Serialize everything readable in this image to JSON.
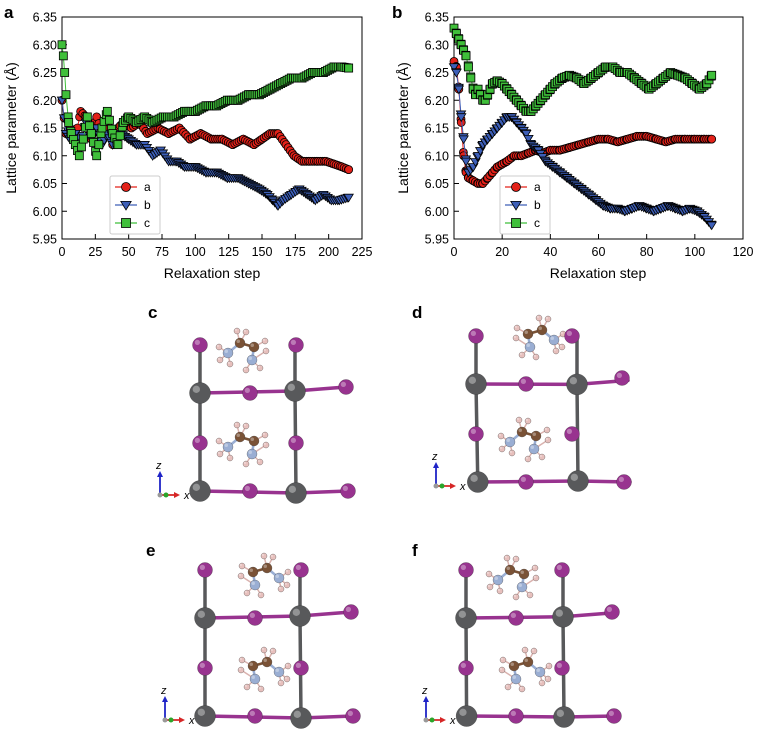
{
  "colors": {
    "series_a": "#e32119",
    "series_b": "#3d5fb8",
    "series_c": "#3fbf3a",
    "pb": "#58595b",
    "iodine": "#98338f",
    "carbon": "#7a5236",
    "nitrogen": "#9aaed3",
    "hydrogen": "#e7c0bd",
    "axis_z": "#1f24c7",
    "axis_x": "#d62626",
    "axis_y": "#2aa52a"
  },
  "chart_data": [
    {
      "panel": "a",
      "type": "scatter",
      "xlabel": "Relaxation step",
      "ylabel": "Lattice parameter (Å)",
      "xlim": [
        0,
        225
      ],
      "ylim": [
        5.95,
        6.35
      ],
      "xticks": [
        "0",
        "25",
        "50",
        "75",
        "100",
        "125",
        "150",
        "175",
        "200",
        "225"
      ],
      "yticks": [
        "5.95",
        "6.00",
        "6.05",
        "6.10",
        "6.15",
        "6.20",
        "6.25",
        "6.30",
        "6.35"
      ],
      "legend": {
        "position": "lower-left",
        "entries": [
          "a",
          "b",
          "c"
        ]
      },
      "series": [
        {
          "name": "a",
          "marker": "circle",
          "points": [
            [
              0,
              6.2
            ],
            [
              3,
              6.14
            ],
            [
              6,
              6.15
            ],
            [
              10,
              6.13
            ],
            [
              14,
              6.18
            ],
            [
              18,
              6.17
            ],
            [
              22,
              6.13
            ],
            [
              26,
              6.17
            ],
            [
              30,
              6.14
            ],
            [
              34,
              6.17
            ],
            [
              38,
              6.12
            ],
            [
              42,
              6.15
            ],
            [
              46,
              6.16
            ],
            [
              52,
              6.15
            ],
            [
              58,
              6.16
            ],
            [
              64,
              6.14
            ],
            [
              72,
              6.15
            ],
            [
              80,
              6.14
            ],
            [
              88,
              6.15
            ],
            [
              96,
              6.13
            ],
            [
              104,
              6.14
            ],
            [
              112,
              6.13
            ],
            [
              120,
              6.13
            ],
            [
              128,
              6.12
            ],
            [
              136,
              6.13
            ],
            [
              144,
              6.12
            ],
            [
              150,
              6.13
            ],
            [
              156,
              6.14
            ],
            [
              162,
              6.14
            ],
            [
              168,
              6.12
            ],
            [
              174,
              6.1
            ],
            [
              180,
              6.09
            ],
            [
              186,
              6.09
            ],
            [
              192,
              6.09
            ],
            [
              198,
              6.09
            ],
            [
              204,
              6.085
            ],
            [
              210,
              6.08
            ],
            [
              215,
              6.075
            ]
          ]
        },
        {
          "name": "b",
          "marker": "triangle-down",
          "points": [
            [
              0,
              6.2
            ],
            [
              3,
              6.14
            ],
            [
              6,
              6.13
            ],
            [
              10,
              6.14
            ],
            [
              14,
              6.12
            ],
            [
              18,
              6.16
            ],
            [
              22,
              6.13
            ],
            [
              26,
              6.15
            ],
            [
              30,
              6.12
            ],
            [
              34,
              6.14
            ],
            [
              38,
              6.12
            ],
            [
              44,
              6.14
            ],
            [
              50,
              6.13
            ],
            [
              56,
              6.12
            ],
            [
              62,
              6.12
            ],
            [
              68,
              6.1
            ],
            [
              74,
              6.11
            ],
            [
              80,
              6.09
            ],
            [
              86,
              6.09
            ],
            [
              92,
              6.08
            ],
            [
              100,
              6.08
            ],
            [
              108,
              6.07
            ],
            [
              116,
              6.07
            ],
            [
              124,
              6.06
            ],
            [
              132,
              6.06
            ],
            [
              140,
              6.05
            ],
            [
              148,
              6.04
            ],
            [
              154,
              6.03
            ],
            [
              158,
              6.02
            ],
            [
              162,
              6.01
            ],
            [
              166,
              6.02
            ],
            [
              172,
              6.03
            ],
            [
              178,
              6.04
            ],
            [
              184,
              6.03
            ],
            [
              190,
              6.02
            ],
            [
              196,
              6.03
            ],
            [
              202,
              6.02
            ],
            [
              208,
              6.02
            ],
            [
              215,
              6.025
            ]
          ]
        },
        {
          "name": "c",
          "marker": "square",
          "points": [
            [
              0,
              6.3
            ],
            [
              1,
              6.28
            ],
            [
              2,
              6.25
            ],
            [
              3,
              6.21
            ],
            [
              5,
              6.16
            ],
            [
              7,
              6.14
            ],
            [
              10,
              6.12
            ],
            [
              13,
              6.1
            ],
            [
              16,
              6.13
            ],
            [
              19,
              6.17
            ],
            [
              22,
              6.14
            ],
            [
              26,
              6.1
            ],
            [
              30,
              6.15
            ],
            [
              34,
              6.18
            ],
            [
              38,
              6.14
            ],
            [
              42,
              6.12
            ],
            [
              46,
              6.16
            ],
            [
              50,
              6.17
            ],
            [
              56,
              6.16
            ],
            [
              62,
              6.17
            ],
            [
              68,
              6.16
            ],
            [
              76,
              6.17
            ],
            [
              84,
              6.17
            ],
            [
              92,
              6.18
            ],
            [
              100,
              6.18
            ],
            [
              108,
              6.19
            ],
            [
              116,
              6.19
            ],
            [
              124,
              6.2
            ],
            [
              132,
              6.2
            ],
            [
              140,
              6.21
            ],
            [
              148,
              6.21
            ],
            [
              156,
              6.22
            ],
            [
              164,
              6.23
            ],
            [
              172,
              6.24
            ],
            [
              180,
              6.24
            ],
            [
              188,
              6.25
            ],
            [
              196,
              6.25
            ],
            [
              204,
              6.26
            ],
            [
              210,
              6.26
            ],
            [
              215,
              6.258
            ]
          ]
        }
      ]
    },
    {
      "panel": "b",
      "type": "scatter",
      "xlabel": "Relaxation step",
      "ylabel": "Lattice parameter (Å)",
      "xlim": [
        0,
        120
      ],
      "ylim": [
        5.95,
        6.35
      ],
      "xticks": [
        "0",
        "20",
        "40",
        "60",
        "80",
        "100",
        "120"
      ],
      "yticks": [
        "5.95",
        "6.00",
        "6.05",
        "6.10",
        "6.15",
        "6.20",
        "6.25",
        "6.30",
        "6.35"
      ],
      "legend": {
        "position": "center",
        "entries": [
          "a",
          "b",
          "c"
        ]
      },
      "series": [
        {
          "name": "a",
          "marker": "circle",
          "points": [
            [
              0,
              6.27
            ],
            [
              1,
              6.26
            ],
            [
              2,
              6.22
            ],
            [
              3,
              6.16
            ],
            [
              4,
              6.1
            ],
            [
              5,
              6.07
            ],
            [
              6,
              6.06
            ],
            [
              8,
              6.055
            ],
            [
              10,
              6.05
            ],
            [
              12,
              6.05
            ],
            [
              14,
              6.06
            ],
            [
              16,
              6.07
            ],
            [
              18,
              6.08
            ],
            [
              20,
              6.085
            ],
            [
              22,
              6.09
            ],
            [
              25,
              6.1
            ],
            [
              28,
              6.1
            ],
            [
              31,
              6.105
            ],
            [
              34,
              6.11
            ],
            [
              37,
              6.105
            ],
            [
              40,
              6.11
            ],
            [
              44,
              6.11
            ],
            [
              48,
              6.115
            ],
            [
              52,
              6.12
            ],
            [
              56,
              6.125
            ],
            [
              60,
              6.13
            ],
            [
              64,
              6.13
            ],
            [
              68,
              6.125
            ],
            [
              72,
              6.13
            ],
            [
              76,
              6.135
            ],
            [
              80,
              6.135
            ],
            [
              84,
              6.13
            ],
            [
              88,
              6.125
            ],
            [
              92,
              6.13
            ],
            [
              96,
              6.13
            ],
            [
              100,
              6.13
            ],
            [
              104,
              6.13
            ],
            [
              107,
              6.13
            ]
          ]
        },
        {
          "name": "b",
          "marker": "triangle-down",
          "points": [
            [
              0,
              6.26
            ],
            [
              1,
              6.25
            ],
            [
              2,
              6.22
            ],
            [
              3,
              6.17
            ],
            [
              4,
              6.13
            ],
            [
              5,
              6.09
            ],
            [
              6,
              6.07
            ],
            [
              8,
              6.08
            ],
            [
              10,
              6.1
            ],
            [
              12,
              6.12
            ],
            [
              14,
              6.13
            ],
            [
              16,
              6.14
            ],
            [
              18,
              6.15
            ],
            [
              20,
              6.16
            ],
            [
              22,
              6.17
            ],
            [
              24,
              6.17
            ],
            [
              26,
              6.16
            ],
            [
              28,
              6.15
            ],
            [
              30,
              6.14
            ],
            [
              32,
              6.12
            ],
            [
              35,
              6.11
            ],
            [
              38,
              6.09
            ],
            [
              41,
              6.08
            ],
            [
              44,
              6.07
            ],
            [
              47,
              6.06
            ],
            [
              50,
              6.05
            ],
            [
              53,
              6.04
            ],
            [
              56,
              6.03
            ],
            [
              59,
              6.02
            ],
            [
              62,
              6.01
            ],
            [
              65,
              6.005
            ],
            [
              68,
              6.005
            ],
            [
              71,
              6.0
            ],
            [
              74,
              6.005
            ],
            [
              77,
              6.01
            ],
            [
              80,
              6.005
            ],
            [
              83,
              6.0
            ],
            [
              86,
              6.005
            ],
            [
              89,
              6.01
            ],
            [
              92,
              6.005
            ],
            [
              95,
              6.0
            ],
            [
              98,
              6.005
            ],
            [
              101,
              6.0
            ],
            [
              104,
              5.99
            ],
            [
              107,
              5.975
            ]
          ]
        },
        {
          "name": "c",
          "marker": "square",
          "points": [
            [
              0,
              6.33
            ],
            [
              1,
              6.32
            ],
            [
              2,
              6.31
            ],
            [
              3,
              6.3
            ],
            [
              4,
              6.29
            ],
            [
              5,
              6.28
            ],
            [
              6,
              6.26
            ],
            [
              7,
              6.24
            ],
            [
              8,
              6.22
            ],
            [
              9,
              6.21
            ],
            [
              10,
              6.22
            ],
            [
              11,
              6.21
            ],
            [
              12,
              6.2
            ],
            [
              13,
              6.2
            ],
            [
              14,
              6.21
            ],
            [
              15,
              6.22
            ],
            [
              16,
              6.23
            ],
            [
              18,
              6.235
            ],
            [
              20,
              6.23
            ],
            [
              22,
              6.22
            ],
            [
              24,
              6.21
            ],
            [
              26,
              6.2
            ],
            [
              28,
              6.19
            ],
            [
              30,
              6.18
            ],
            [
              32,
              6.18
            ],
            [
              34,
              6.19
            ],
            [
              36,
              6.2
            ],
            [
              38,
              6.21
            ],
            [
              40,
              6.22
            ],
            [
              42,
              6.23
            ],
            [
              45,
              6.24
            ],
            [
              48,
              6.245
            ],
            [
              51,
              6.24
            ],
            [
              54,
              6.23
            ],
            [
              57,
              6.24
            ],
            [
              60,
              6.25
            ],
            [
              63,
              6.26
            ],
            [
              66,
              6.26
            ],
            [
              69,
              6.25
            ],
            [
              72,
              6.25
            ],
            [
              75,
              6.24
            ],
            [
              78,
              6.23
            ],
            [
              81,
              6.22
            ],
            [
              84,
              6.23
            ],
            [
              87,
              6.24
            ],
            [
              90,
              6.25
            ],
            [
              93,
              6.245
            ],
            [
              96,
              6.24
            ],
            [
              99,
              6.23
            ],
            [
              102,
              6.22
            ],
            [
              105,
              6.23
            ],
            [
              107,
              6.245
            ]
          ]
        }
      ]
    }
  ],
  "structures": [
    {
      "panel": "c",
      "axis_z": "z",
      "axis_x": "x"
    },
    {
      "panel": "d",
      "axis_z": "z",
      "axis_x": "x"
    },
    {
      "panel": "e",
      "axis_z": "z",
      "axis_x": "x"
    },
    {
      "panel": "f",
      "axis_z": "z",
      "axis_x": "x"
    }
  ]
}
